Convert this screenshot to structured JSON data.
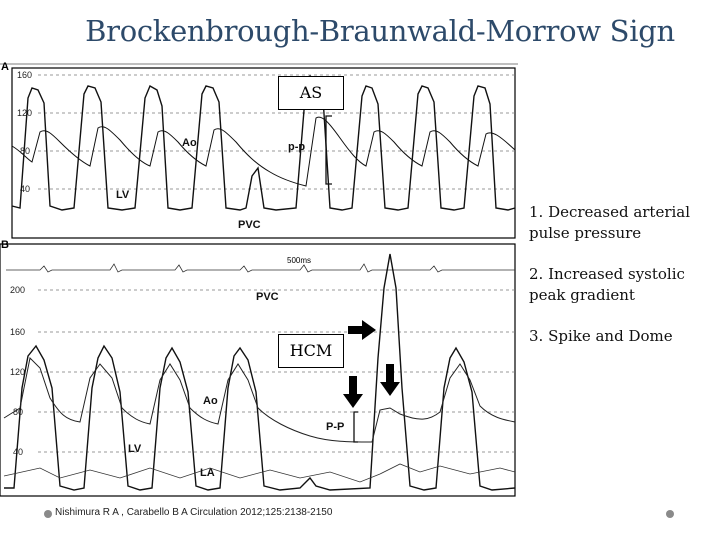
{
  "title": "Brockenbrough-Braunwald-Morrow Sign",
  "panel_a": {
    "label": "A",
    "ticks": [
      "160",
      "120",
      "80",
      "40"
    ],
    "labels": {
      "ao": "Ao",
      "lv": "LV",
      "pvc": "PVC",
      "pp": "p-p"
    },
    "box": "AS"
  },
  "panel_b": {
    "label": "B",
    "scale": "500ms",
    "ticks": [
      "200",
      "160",
      "120",
      "80",
      "40"
    ],
    "labels": {
      "pvc": "PVC",
      "ao": "Ao",
      "lv": "LV",
      "la": "LA",
      "pp": "P-P"
    },
    "box": "HCM"
  },
  "bullets": [
    "1. Decreased arterial pulse pressure",
    "2. Increased systolic peak gradient",
    "3. Spike and Dome"
  ],
  "citation": "Nishimura R A , Carabello B A Circulation 2012;125:2138-2150"
}
